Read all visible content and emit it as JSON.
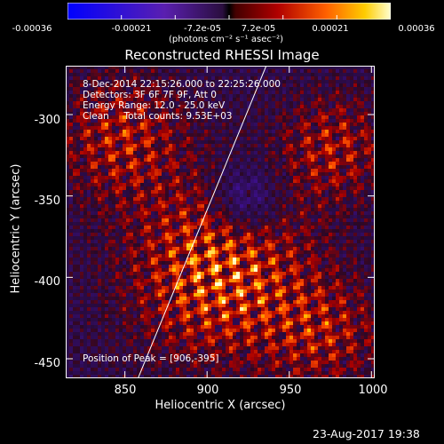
{
  "colorbar": {
    "ticks": [
      "-0.00036",
      "-0.00021",
      "-7.2e-05",
      "7.2e-05",
      "0.00021",
      "0.00036"
    ],
    "unit": "(photons cm⁻² s⁻¹ asec⁻²)",
    "range": [
      -0.00036,
      0.00036
    ]
  },
  "chart_data": {
    "type": "heatmap",
    "title": "Reconstructed RHESSI Image",
    "xlabel": "Heliocentric X (arcsec)",
    "ylabel": "Heliocentric Y (arcsec)",
    "xlim": [
      814,
      1002
    ],
    "ylim": [
      -462,
      -270
    ],
    "x_ticks": [
      "850",
      "900",
      "950",
      "1000"
    ],
    "y_ticks": [
      "-300",
      "-350",
      "-400",
      "-450"
    ],
    "annotations": [
      "8-Dec-2014 22:15:26.000 to 22:25:26.000",
      "Detectors: 3F 6F 7F 9F, Att 0",
      "Energy Range: 12.0 - 25.0 keV",
      "Clean     Total counts: 9.53E+03"
    ],
    "peak_label": "Position of Peak = [906,-395]",
    "peak": [
      906,
      -395
    ],
    "limb_line": {
      "x": [
        858,
        936
      ],
      "y": [
        -462,
        -270
      ]
    }
  },
  "footer": {
    "timestamp": "23-Aug-2017 19:38"
  }
}
